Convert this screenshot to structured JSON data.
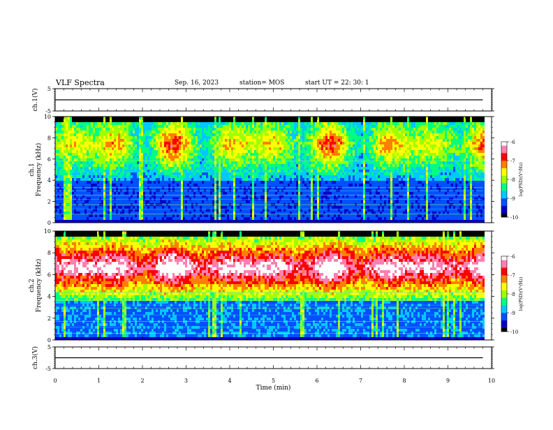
{
  "header": {
    "title": "VLF Spectra",
    "date": "Sep. 16, 2023",
    "station": "station= MOS",
    "start": "start  UT =   22: 30: 1"
  },
  "chart_data": [
    {
      "type": "line",
      "panel": "ch1-voltage",
      "ylabel": "ch.1(V)",
      "ylim": [
        -5,
        5
      ],
      "yticks": [
        "5",
        "-5"
      ],
      "series": [
        {
          "x": [
            0,
            9.8
          ],
          "y": [
            0,
            0
          ]
        }
      ]
    },
    {
      "type": "heatmap",
      "panel": "ch1-spectrogram",
      "ylabel": "ch.1\nFrequency (kHz)",
      "ylim": [
        0,
        10
      ],
      "yticks": [
        "0",
        "2",
        "4",
        "6",
        "8",
        "10"
      ],
      "xlim": [
        0,
        10
      ],
      "data_end_min": 9.8,
      "colorbar": {
        "label": "log(PSD)(V²/Hz)",
        "range": [
          -10,
          -6
        ],
        "ticks": [
          "-6",
          "-7",
          "-8",
          "-9",
          "-10"
        ]
      },
      "colormap": [
        "#000000",
        "#0000c8",
        "#0050ff",
        "#00c8ff",
        "#00ff80",
        "#a0ff00",
        "#ffff00",
        "#ff8000",
        "#ff0000",
        "#ff80b0",
        "#ffffff"
      ]
    },
    {
      "type": "heatmap",
      "panel": "ch2-spectrogram",
      "ylabel": "ch.2\nFrequency (kHz)",
      "ylim": [
        0,
        10
      ],
      "yticks": [
        "0",
        "2",
        "4",
        "6",
        "8",
        "10"
      ],
      "xlim": [
        0,
        10
      ],
      "data_end_min": 9.8,
      "colorbar": {
        "label": "log(PSD)(V²/Hz)",
        "range": [
          -10,
          -6
        ],
        "ticks": [
          "-6",
          "-7",
          "-8",
          "-9",
          "-10"
        ]
      },
      "colormap": [
        "#000000",
        "#0000c8",
        "#0050ff",
        "#00c8ff",
        "#00ff80",
        "#a0ff00",
        "#ffff00",
        "#ff8000",
        "#ff0000",
        "#ff80b0",
        "#ffffff"
      ]
    },
    {
      "type": "line",
      "panel": "ch3-voltage",
      "ylabel": "ch.3(V)",
      "ylim": [
        -5,
        5
      ],
      "yticks": [
        "5",
        "-5"
      ],
      "xlabel": "Time  (min)",
      "xlim": [
        0,
        10
      ],
      "xticks": [
        "0",
        "1",
        "2",
        "3",
        "4",
        "5",
        "6",
        "7",
        "8",
        "9",
        "10"
      ],
      "series": [
        {
          "x": [
            0,
            9.8
          ],
          "y": [
            0,
            0
          ]
        }
      ]
    }
  ]
}
